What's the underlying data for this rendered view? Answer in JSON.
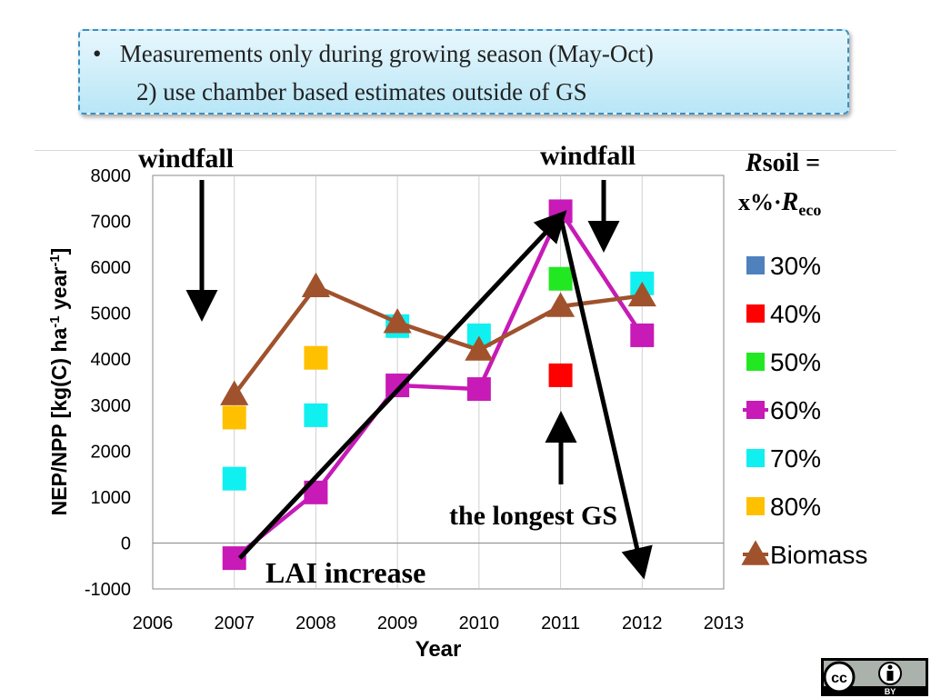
{
  "slide": {
    "bullet_symbol": "•",
    "bullet_line1": "Measurements only during growing season (May-Oct)",
    "bullet_line2": "2)   use chamber based estimates outside of  GS"
  },
  "annotations": {
    "windfall_left": "windfall",
    "windfall_right": "windfall",
    "longest_gs": "the longest GS",
    "lai_increase": "LAI increase",
    "rsoil_R": "R",
    "rsoil_rest": "soil =",
    "rsoil_line2": "x%·",
    "rsoil_R2": "R",
    "rsoil_sub": "eco"
  },
  "license": {
    "cc_label": "cc",
    "by_label": "BY",
    "icon": "person-icon"
  },
  "chart_data": {
    "type": "scatter",
    "xlabel": "Year",
    "ylabel_parts": [
      "NEP/NPP [kg(C) ha",
      "-1",
      " year",
      "-1",
      "]"
    ],
    "xlim": [
      2006,
      2013
    ],
    "ylim": [
      -1000,
      8000
    ],
    "xticks": [
      2006,
      2007,
      2008,
      2009,
      2010,
      2011,
      2012,
      2013
    ],
    "yticks": [
      -1000,
      0,
      1000,
      2000,
      3000,
      4000,
      5000,
      6000,
      7000,
      8000
    ],
    "grid": "vertical",
    "legend_position": "right",
    "series": [
      {
        "name": "30%",
        "color": "#4f81bd",
        "marker": "square",
        "line": false,
        "points": []
      },
      {
        "name": "40%",
        "color": "#ff0000",
        "marker": "square",
        "line": false,
        "points": [
          [
            2011,
            3650
          ]
        ]
      },
      {
        "name": "50%",
        "color": "#22e822",
        "marker": "square",
        "line": false,
        "points": [
          [
            2011,
            5750
          ]
        ]
      },
      {
        "name": "60%",
        "color": "#c71ab7",
        "marker": "square",
        "line": true,
        "points": [
          [
            2007,
            -330
          ],
          [
            2008,
            1100
          ],
          [
            2009,
            3430
          ],
          [
            2010,
            3350
          ],
          [
            2011,
            7220
          ],
          [
            2012,
            4520
          ]
        ]
      },
      {
        "name": "70%",
        "color": "#11f0f0",
        "marker": "square",
        "line": false,
        "points": [
          [
            2007,
            1400
          ],
          [
            2008,
            2780
          ],
          [
            2009,
            4720
          ],
          [
            2010,
            4520
          ],
          [
            2012,
            5650
          ]
        ]
      },
      {
        "name": "80%",
        "color": "#ffc000",
        "marker": "square",
        "line": false,
        "points": [
          [
            2007,
            2730
          ],
          [
            2008,
            4030
          ]
        ]
      },
      {
        "name": "Biomass",
        "color": "#a0522d",
        "marker": "triangle",
        "line": true,
        "points": [
          [
            2007,
            3230
          ],
          [
            2008,
            5580
          ],
          [
            2009,
            4800
          ],
          [
            2010,
            4200
          ],
          [
            2011,
            5150
          ],
          [
            2012,
            5380
          ]
        ]
      }
    ],
    "overlay_arrows": [
      {
        "from": [
          2007,
          -330
        ],
        "to": [
          2011,
          7100
        ]
      },
      {
        "from": [
          2011,
          7100
        ],
        "to": [
          2012,
          -600
        ]
      }
    ]
  }
}
